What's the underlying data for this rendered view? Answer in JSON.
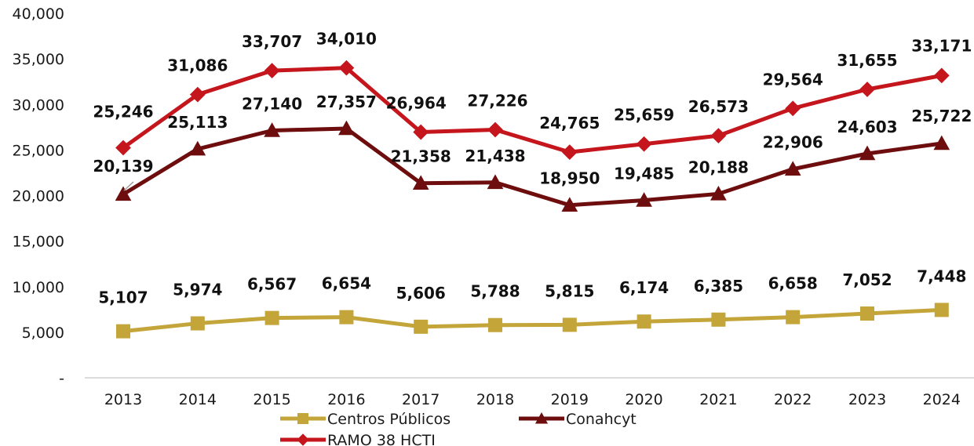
{
  "chart_data": {
    "type": "line",
    "title": "",
    "xlabel": "",
    "ylabel": "",
    "categories": [
      "2013",
      "2014",
      "2015",
      "2016",
      "2017",
      "2018",
      "2019",
      "2020",
      "2021",
      "2022",
      "2023",
      "2024"
    ],
    "ylim": [
      0,
      40000
    ],
    "yticks": [
      0,
      5000,
      10000,
      15000,
      20000,
      25000,
      30000,
      35000,
      40000
    ],
    "ytick_labels": [
      "-",
      "5,000",
      "10,000",
      "15,000",
      "20,000",
      "25,000",
      "30,000",
      "35,000",
      "40,000"
    ],
    "grid": false,
    "legend_position": "bottom",
    "series": [
      {
        "name": "Centros Públicos",
        "color": "#c3a53a",
        "marker": "square",
        "values": [
          5107,
          5974,
          6567,
          6654,
          5606,
          5788,
          5815,
          6174,
          6385,
          6658,
          7052,
          7448
        ],
        "labels": [
          "5,107",
          "5,974",
          "6,567",
          "6,654",
          "5,606",
          "5,788",
          "5,815",
          "6,174",
          "6,385",
          "6,658",
          "7,052",
          "7,448"
        ]
      },
      {
        "name": "Conahcyt",
        "color": "#6e0d0d",
        "marker": "triangle",
        "values": [
          20139,
          25113,
          27140,
          27357,
          21358,
          21438,
          18950,
          19485,
          20188,
          22906,
          24603,
          25722
        ],
        "labels": [
          "20,139",
          "25,113",
          "27,140",
          "27,357",
          "21,358",
          "21,438",
          "18,950",
          "19,485",
          "20,188",
          "22,906",
          "24,603",
          "25,722"
        ]
      },
      {
        "name": "RAMO 38 HCTI",
        "color": "#c4161c",
        "marker": "diamond",
        "values": [
          25246,
          31086,
          33707,
          34010,
          26964,
          27226,
          24765,
          25659,
          26573,
          29564,
          31655,
          33171
        ],
        "labels": [
          "25,246",
          "31,086",
          "33,707",
          "34,010",
          "26,964",
          "27,226",
          "24,765",
          "25,659",
          "26,573",
          "29,564",
          "31,655",
          "33,171"
        ]
      }
    ]
  }
}
